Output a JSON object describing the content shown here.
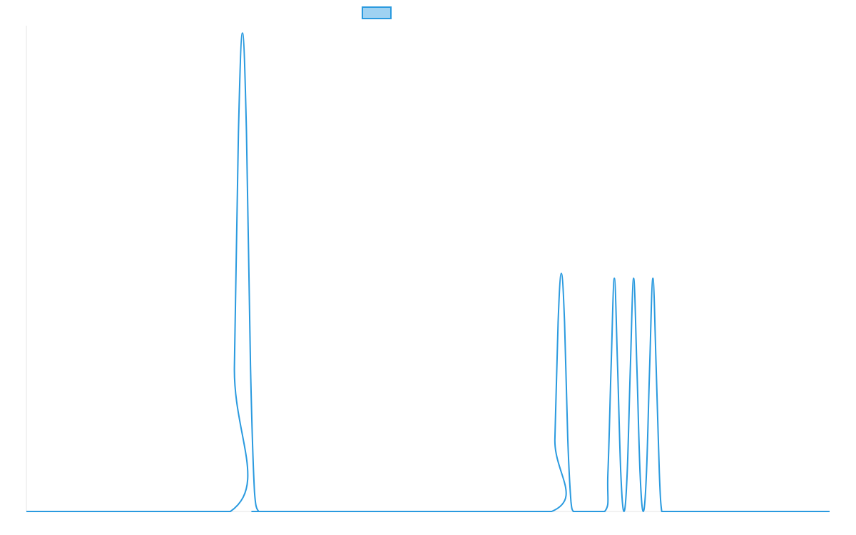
{
  "chart_data": {
    "type": "line",
    "title": "",
    "xlabel": "",
    "ylabel": "",
    "xlim": [
      0,
      1
    ],
    "ylim": [
      0,
      1
    ],
    "grid": false,
    "legend": {
      "placement": "top-center",
      "entries": [
        {
          "label": "",
          "swatch_fill": "#9fd2f2",
          "swatch_stroke": "#2a9adf"
        }
      ]
    },
    "series": [
      {
        "color": "#2a9adf",
        "x": [
          0.0,
          0.254,
          0.259,
          0.264,
          0.269,
          0.274,
          0.279,
          0.284,
          0.289,
          0.294,
          0.442,
          0.654,
          0.658,
          0.662,
          0.666,
          0.67,
          0.674,
          0.678,
          0.681,
          0.685,
          0.72,
          0.724,
          0.728,
          0.732,
          0.736,
          0.74,
          0.744,
          0.748,
          0.752,
          0.756,
          0.76,
          0.764,
          0.768,
          0.772,
          0.776,
          0.78,
          0.784,
          0.788,
          0.791,
          0.795,
          0.799,
          0.803,
          0.807,
          0.811,
          0.815,
          0.819,
          0.823,
          1.0
        ],
        "y": [
          0.0,
          0.0,
          0.3,
          0.78,
          0.985,
          0.78,
          0.3,
          0.04,
          0.0,
          0.0,
          0.0,
          0.0,
          0.15,
          0.39,
          0.49,
          0.39,
          0.15,
          0.02,
          0.0,
          0.0,
          0.0,
          0.08,
          0.3,
          0.48,
          0.3,
          0.08,
          0.0,
          0.08,
          0.3,
          0.48,
          0.3,
          0.08,
          0.0,
          0.08,
          0.3,
          0.48,
          0.3,
          0.08,
          0.0,
          0.0,
          0.0,
          0.0,
          0.0,
          0.0,
          0.0,
          0.0,
          0.0,
          0.0
        ]
      }
    ]
  }
}
